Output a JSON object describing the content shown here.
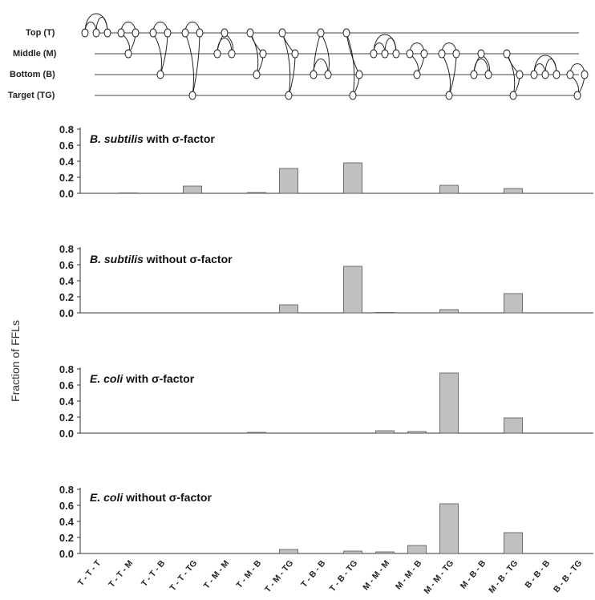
{
  "levels": [
    {
      "label": "Top (T)"
    },
    {
      "label": "Middle (M)"
    },
    {
      "label": "Bottom (B)"
    },
    {
      "label": "Target (TG)"
    }
  ],
  "chart_data": {
    "type": "bar",
    "ylabel": "Fraction of FFLs",
    "ylim": [
      0,
      0.8
    ],
    "yticks": [
      "0.0",
      "0.2",
      "0.4",
      "0.6",
      "0.8"
    ],
    "bar_color": "#c0c0c0",
    "categories": [
      "T - T - T",
      "T - T - M",
      "T - T - B",
      "T - T - TG",
      "T - M - M",
      "T - M - B",
      "T - M - TG",
      "T - B - B",
      "T - B - TG",
      "M - M - M",
      "M - M - B",
      "M - M - TG",
      "M - B - B",
      "M - B - TG",
      "B - B - B",
      "B - B - TG"
    ],
    "panels": [
      {
        "title_bold": "B. subtilis",
        "title_rest": "with σ-factor",
        "values": [
          0,
          0.005,
          0,
          0.09,
          0,
          0.01,
          0.31,
          0,
          0.38,
          0,
          0,
          0.1,
          0,
          0.06,
          0,
          0
        ]
      },
      {
        "title_bold": "B. subtilis",
        "title_rest": "without σ-factor",
        "values": [
          0,
          0,
          0,
          0,
          0,
          0,
          0.1,
          0,
          0.58,
          0.005,
          0,
          0.04,
          0,
          0.24,
          0,
          0
        ]
      },
      {
        "title_bold": "E. coli",
        "title_rest": "with σ-factor",
        "values": [
          0,
          0,
          0,
          0,
          0,
          0.01,
          0,
          0,
          0,
          0.03,
          0.02,
          0.75,
          0,
          0.19,
          0,
          0
        ]
      },
      {
        "title_bold": "E. coli",
        "title_rest": "without σ-factor",
        "values": [
          0,
          0,
          0,
          0,
          0,
          0,
          0.05,
          0,
          0.03,
          0.02,
          0.1,
          0.62,
          0,
          0.26,
          0,
          0
        ]
      }
    ]
  }
}
